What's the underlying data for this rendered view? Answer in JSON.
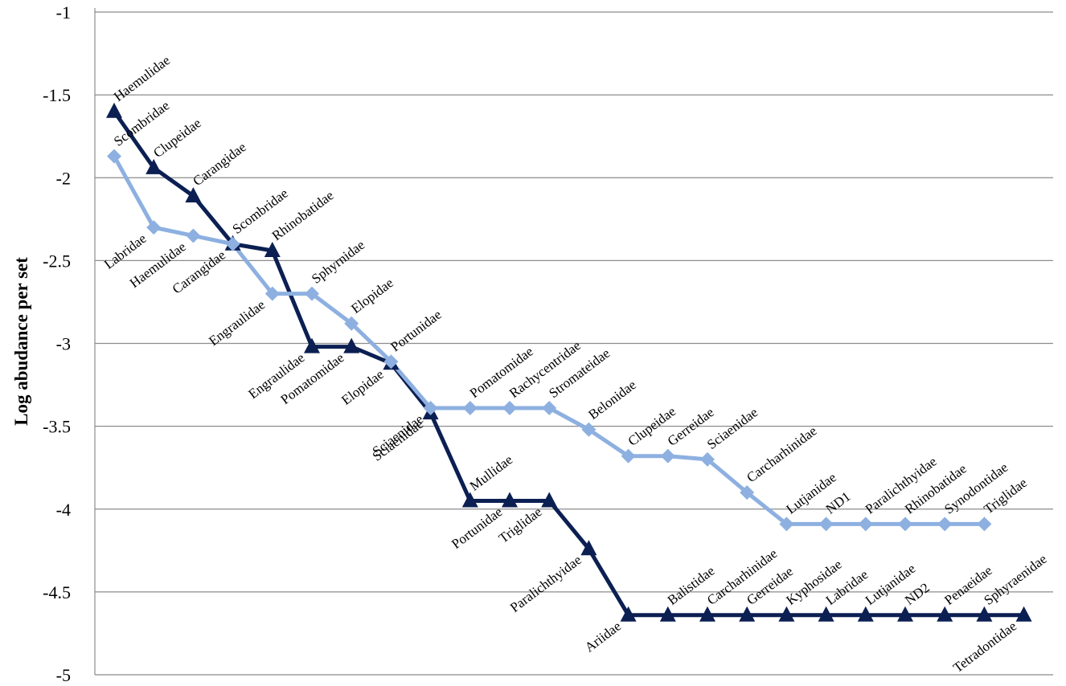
{
  "chart_data": {
    "type": "line",
    "ylabel": "Log abudance per set",
    "ylim": [
      -5,
      -1
    ],
    "yticks": [
      -1,
      -1.5,
      -2,
      -2.5,
      -3,
      -3.5,
      -4,
      -4.5,
      -5
    ],
    "ytick_labels": [
      "-1",
      "-1.5",
      "-2",
      "-2.5",
      "-3",
      "-3.5",
      "-4",
      "-4.5",
      "-5"
    ],
    "grid": true,
    "x_positions": 24,
    "series": [
      {
        "color": "#0b1f52",
        "marker": "triangle",
        "points": [
          {
            "label": "Haemulidae",
            "y": -1.6
          },
          {
            "label": "Clupeidae",
            "y": -1.94
          },
          {
            "label": "Carangidae",
            "y": -2.11
          },
          {
            "label": "Scombridae",
            "y": -2.4
          },
          {
            "label": "Rhinobatidae",
            "y": -2.44
          },
          {
            "label": "Engraulidae",
            "y": -3.02
          },
          {
            "label": "Pomatomidae",
            "y": -3.02
          },
          {
            "label": "Elopidae",
            "y": -3.12
          },
          {
            "label": "Sciaenidae",
            "y": -3.42
          },
          {
            "label": "Mullidae",
            "y": -3.95
          },
          {
            "label": "Portunidae",
            "y": -3.95
          },
          {
            "label": "Triglidae",
            "y": -3.95
          },
          {
            "label": "Paralichthyidae",
            "y": -4.24
          },
          {
            "label": "Ariidae",
            "y": -4.64
          },
          {
            "label": "Balistidae",
            "y": -4.64
          },
          {
            "label": "Carcharhinidae",
            "y": -4.64
          },
          {
            "label": "Gerreidae",
            "y": -4.64
          },
          {
            "label": "Kyphosidae",
            "y": -4.64
          },
          {
            "label": "Labridae",
            "y": -4.64
          },
          {
            "label": "Lutjanidae",
            "y": -4.64
          },
          {
            "label": "ND2",
            "y": -4.64
          },
          {
            "label": "Penaeidae",
            "y": -4.64
          },
          {
            "label": "Sphyraenidae",
            "y": -4.64
          },
          {
            "label": "Tetradontidae",
            "y": -4.64
          }
        ]
      },
      {
        "color": "#8db0e0",
        "marker": "diamond",
        "points": [
          {
            "label": "Scombridae",
            "y": -1.87
          },
          {
            "label": "Labridae",
            "y": -2.3
          },
          {
            "label": "Haemulidae",
            "y": -2.35
          },
          {
            "label": "Carangidae",
            "y": -2.4
          },
          {
            "label": "Engraulidae",
            "y": -2.7
          },
          {
            "label": "Sphyrnidae",
            "y": -2.7
          },
          {
            "label": "Elopidae",
            "y": -2.88
          },
          {
            "label": "Portunidae",
            "y": -3.11
          },
          {
            "label": "Sciaenidae",
            "y": -3.39
          },
          {
            "label": "Pomatomidae",
            "y": -3.39
          },
          {
            "label": "Rachycentridae",
            "y": -3.39
          },
          {
            "label": "Stromateidae",
            "y": -3.39
          },
          {
            "label": "Belonidae",
            "y": -3.52
          },
          {
            "label": "Clupeidae",
            "y": -3.68
          },
          {
            "label": "Gerreidae",
            "y": -3.68
          },
          {
            "label": "Sciaenidae",
            "y": -3.7
          },
          {
            "label": "Carcharhinidae",
            "y": -3.9
          },
          {
            "label": "Lutjanidae",
            "y": -4.09
          },
          {
            "label": "ND1",
            "y": -4.09
          },
          {
            "label": "Paralichthyidae",
            "y": -4.09
          },
          {
            "label": "Rhinobatidae",
            "y": -4.09
          },
          {
            "label": "Synodontidae",
            "y": -4.09
          },
          {
            "label": "Triglidae",
            "y": -4.09
          }
        ]
      }
    ]
  }
}
